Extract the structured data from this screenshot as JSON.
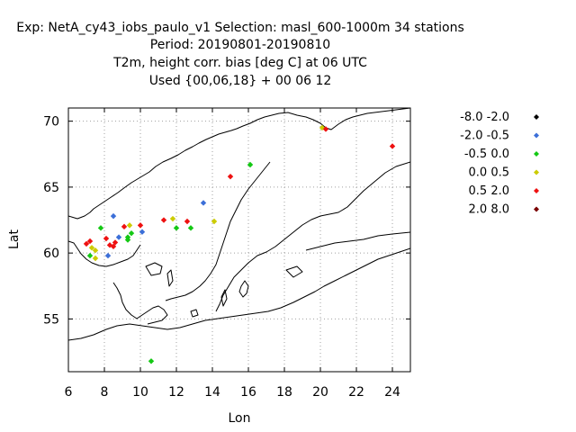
{
  "header": {
    "line1": "Exp: NetA_cy43_iobs_paulo_v1   Selection: masl_600-1000m     34 stations",
    "line2": "Period: 20190801-20190810",
    "line3": "T2m, height corr. bias [deg C] at  06 UTC",
    "line4": "Used {00,06,18} + 00 06 12"
  },
  "chart_data": {
    "type": "scatter",
    "xlabel": "Lon",
    "ylabel": "Lat",
    "xlim": [
      6,
      25
    ],
    "ylim": [
      51,
      71
    ],
    "xticks": [
      "6",
      "8",
      "10",
      "12",
      "14",
      "16",
      "18",
      "20",
      "22",
      "24"
    ],
    "yticks": [
      "55",
      "60",
      "65",
      "70"
    ],
    "grid": true,
    "legend_position": "right",
    "legend": [
      {
        "label": "-8.0 -2.0",
        "color": "#000000"
      },
      {
        "label": "-2.0 -0.5",
        "color": "#3c6fd8"
      },
      {
        "label": "-0.5 0.0",
        "color": "#14c814"
      },
      {
        "label": " 0.0 0.5",
        "color": "#cccc00"
      },
      {
        "label": " 0.5 2.0",
        "color": "#ee1111"
      },
      {
        "label": " 2.0 8.0",
        "color": "#7a0000"
      }
    ],
    "points": [
      {
        "lon": 7.0,
        "lat": 60.7,
        "cls": 4
      },
      {
        "lon": 7.2,
        "lat": 60.9,
        "cls": 4
      },
      {
        "lon": 7.3,
        "lat": 60.4,
        "cls": 3
      },
      {
        "lon": 7.5,
        "lat": 60.2,
        "cls": 3
      },
      {
        "lon": 7.2,
        "lat": 59.8,
        "cls": 2
      },
      {
        "lon": 7.5,
        "lat": 59.6,
        "cls": 3
      },
      {
        "lon": 7.8,
        "lat": 61.9,
        "cls": 2
      },
      {
        "lon": 8.1,
        "lat": 61.1,
        "cls": 4
      },
      {
        "lon": 8.3,
        "lat": 60.6,
        "cls": 4
      },
      {
        "lon": 8.6,
        "lat": 60.8,
        "cls": 4
      },
      {
        "lon": 8.5,
        "lat": 60.5,
        "cls": 4
      },
      {
        "lon": 8.2,
        "lat": 59.8,
        "cls": 1
      },
      {
        "lon": 8.5,
        "lat": 62.8,
        "cls": 1
      },
      {
        "lon": 8.8,
        "lat": 61.2,
        "cls": 1
      },
      {
        "lon": 9.1,
        "lat": 62.0,
        "cls": 4
      },
      {
        "lon": 9.3,
        "lat": 61.2,
        "cls": 2
      },
      {
        "lon": 9.3,
        "lat": 61.0,
        "cls": 2
      },
      {
        "lon": 9.4,
        "lat": 62.1,
        "cls": 3
      },
      {
        "lon": 9.5,
        "lat": 61.5,
        "cls": 2
      },
      {
        "lon": 10.0,
        "lat": 62.1,
        "cls": 4
      },
      {
        "lon": 10.1,
        "lat": 61.6,
        "cls": 1
      },
      {
        "lon": 11.3,
        "lat": 62.5,
        "cls": 4
      },
      {
        "lon": 11.8,
        "lat": 62.6,
        "cls": 3
      },
      {
        "lon": 12.0,
        "lat": 61.9,
        "cls": 2
      },
      {
        "lon": 12.6,
        "lat": 62.4,
        "cls": 4
      },
      {
        "lon": 12.8,
        "lat": 61.9,
        "cls": 2
      },
      {
        "lon": 14.1,
        "lat": 62.4,
        "cls": 3
      },
      {
        "lon": 13.5,
        "lat": 63.8,
        "cls": 1
      },
      {
        "lon": 15.0,
        "lat": 65.8,
        "cls": 4
      },
      {
        "lon": 16.1,
        "lat": 66.7,
        "cls": 2
      },
      {
        "lon": 10.6,
        "lat": 51.8,
        "cls": 2
      },
      {
        "lon": 20.1,
        "lat": 69.5,
        "cls": 3
      },
      {
        "lon": 20.3,
        "lat": 69.4,
        "cls": 4
      },
      {
        "lon": 24.0,
        "lat": 68.1,
        "cls": 4
      }
    ]
  }
}
